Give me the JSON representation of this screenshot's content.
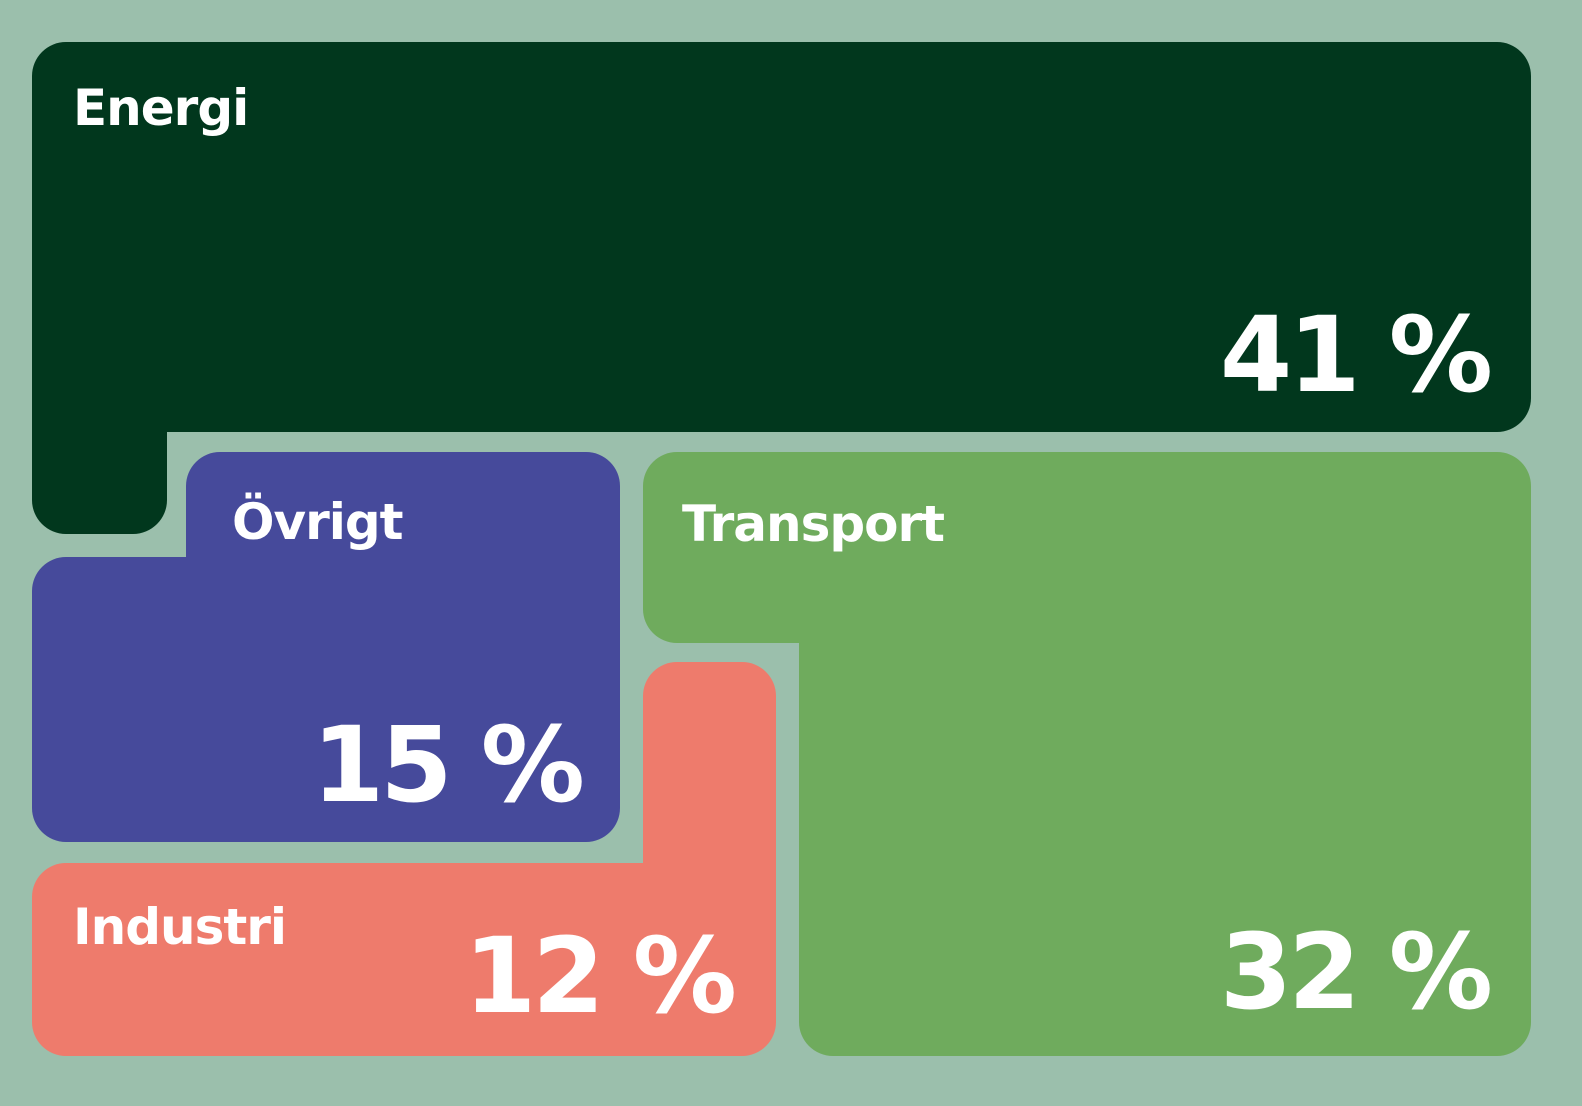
{
  "chart_data": {
    "type": "treemap",
    "title": "",
    "unit": "%",
    "segments": [
      {
        "name": "Energi",
        "value": 41,
        "value_label": "41 %",
        "color": "#01371d"
      },
      {
        "name": "Övrigt",
        "value": 15,
        "value_label": "15 %",
        "color": "#464a9b"
      },
      {
        "name": "Transport",
        "value": 32,
        "value_label": "32 %",
        "color": "#6fab5d"
      },
      {
        "name": "Industri",
        "value": 12,
        "value_label": "12 %",
        "color": "#ee7b6c"
      }
    ]
  },
  "background_color": "#9bbfac"
}
